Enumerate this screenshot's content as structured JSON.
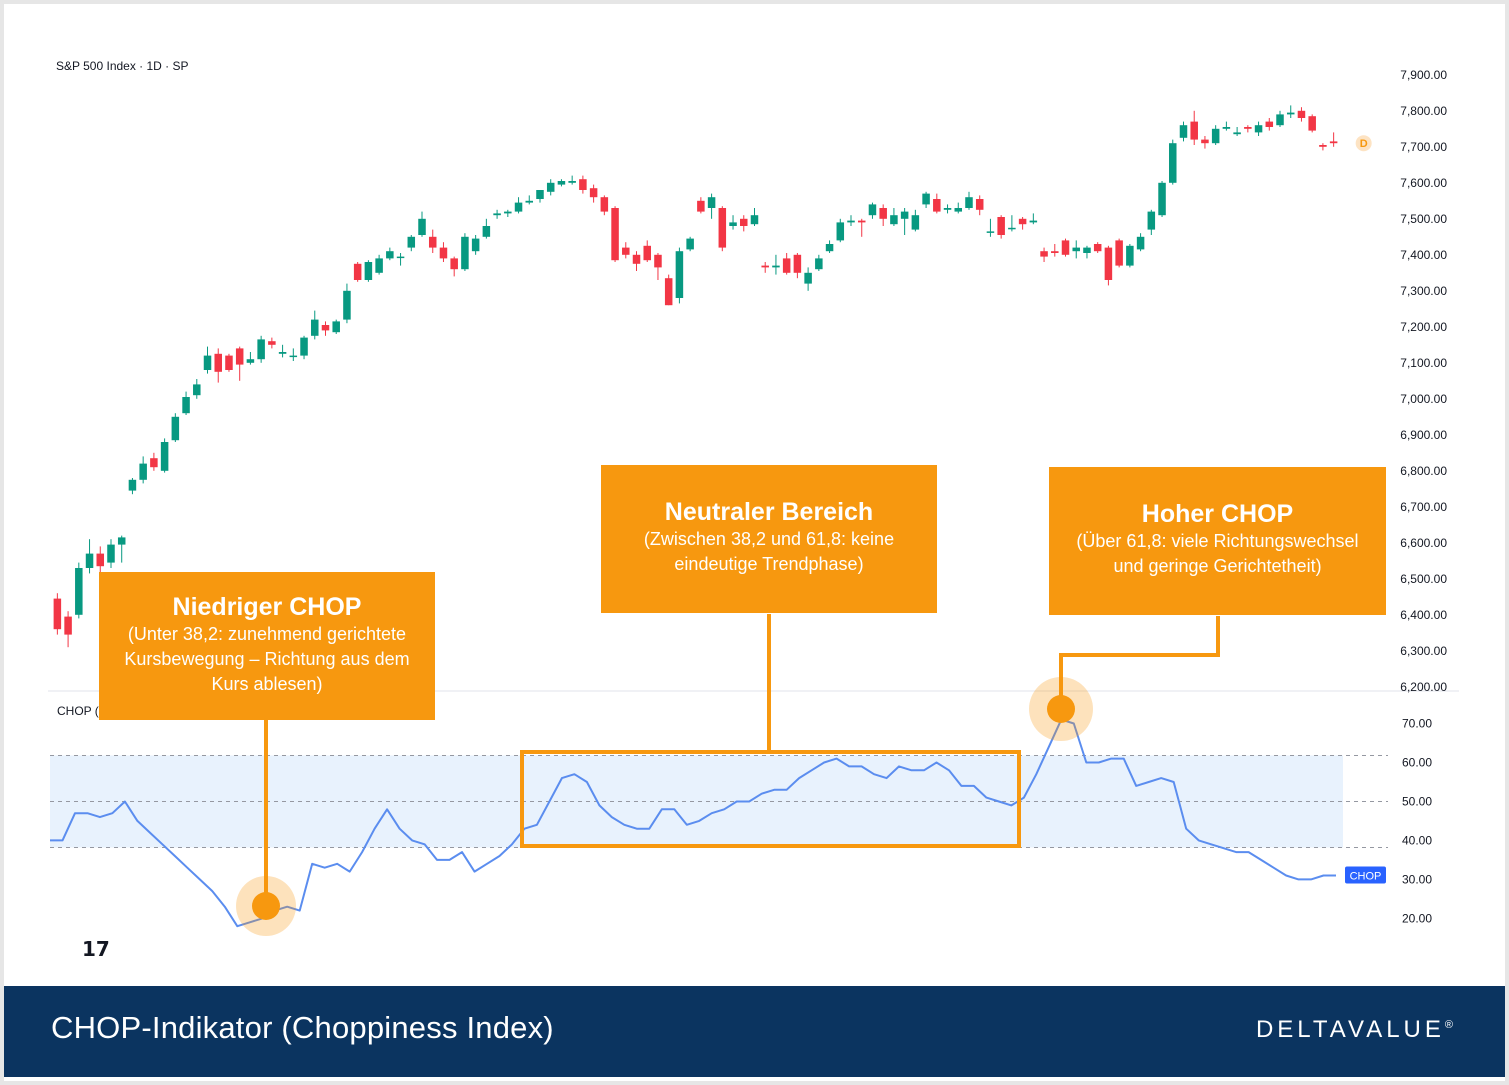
{
  "header": {
    "symbol": "S&P 500 Index · 1D · SP"
  },
  "indicator_label": "CHOP (",
  "callouts": {
    "low": {
      "title": "Niedriger CHOP",
      "text": "(Unter 38,2: zunehmend gerichtete Kursbewegung – Richtung aus dem Kurs ablesen)"
    },
    "neutral": {
      "title": "Neutraler Bereich",
      "text": "(Zwischen 38,2 und 61,8: keine eindeutige Trendphase)"
    },
    "high": {
      "title": "Hoher CHOP",
      "text": "(Über 61,8: viele Richtungswechsel und geringe Gerichtetheit)"
    }
  },
  "footer": {
    "title": "CHOP-Indikator (Choppiness Index)",
    "brand": "DELTAVALUE"
  },
  "colors": {
    "up": "#089981",
    "down": "#f23645",
    "chop_line": "#5b8def",
    "band_fill": "#e8f2fd",
    "callout": "#f7980f",
    "footer_bg": "#0b3460"
  },
  "chart_data": [
    {
      "type": "candlestick",
      "title": "S&P 500 Index · 1D · SP",
      "y_ticks": [
        "7,900.00",
        "7,800.00",
        "7,700.00",
        "7,600.00",
        "7,500.00",
        "7,400.00",
        "7,300.00",
        "7,200.00",
        "7,100.00",
        "7,000.00",
        "6,900.00",
        "6,800.00",
        "6,700.00",
        "6,600.00",
        "6,500.00",
        "6,400.00",
        "6,300.00",
        "6,200.00"
      ],
      "y_tick_values": [
        7900,
        7800,
        7700,
        7600,
        7500,
        7400,
        7300,
        7200,
        7100,
        7000,
        6900,
        6800,
        6700,
        6600,
        6500,
        6400,
        6300,
        6200
      ],
      "ylim": [
        6180,
        7930
      ],
      "last_price_marker": "D",
      "candles": [
        [
          6445,
          6360,
          6460,
          6345
        ],
        [
          6395,
          6345,
          6410,
          6310
        ],
        [
          6400,
          6530,
          6545,
          6390
        ],
        [
          6530,
          6570,
          6610,
          6515
        ],
        [
          6570,
          6535,
          6590,
          6500
        ],
        [
          6545,
          6595,
          6610,
          6530
        ],
        [
          6595,
          6615,
          6620,
          6545
        ],
        [
          6745,
          6775,
          6780,
          6735
        ],
        [
          6775,
          6820,
          6840,
          6765
        ],
        [
          6835,
          6810,
          6850,
          6800
        ],
        [
          6800,
          6880,
          6890,
          6795
        ],
        [
          6885,
          6950,
          6960,
          6880
        ],
        [
          6960,
          7005,
          7020,
          6955
        ],
        [
          7010,
          7040,
          7055,
          7000
        ],
        [
          7080,
          7120,
          7145,
          7070
        ],
        [
          7125,
          7075,
          7140,
          7045
        ],
        [
          7120,
          7080,
          7125,
          7075
        ],
        [
          7140,
          7095,
          7145,
          7050
        ],
        [
          7100,
          7110,
          7130,
          7095
        ],
        [
          7110,
          7165,
          7175,
          7100
        ],
        [
          7160,
          7150,
          7170,
          7140
        ],
        [
          7125,
          7130,
          7150,
          7115
        ],
        [
          7120,
          7120,
          7140,
          7105
        ],
        [
          7120,
          7170,
          7175,
          7110
        ],
        [
          7175,
          7220,
          7245,
          7165
        ],
        [
          7205,
          7190,
          7215,
          7175
        ],
        [
          7185,
          7215,
          7220,
          7180
        ],
        [
          7220,
          7300,
          7320,
          7210
        ],
        [
          7375,
          7330,
          7380,
          7325
        ],
        [
          7330,
          7380,
          7385,
          7325
        ],
        [
          7350,
          7390,
          7400,
          7345
        ],
        [
          7390,
          7410,
          7420,
          7385
        ],
        [
          7395,
          7395,
          7405,
          7370
        ],
        [
          7420,
          7450,
          7455,
          7410
        ],
        [
          7455,
          7500,
          7520,
          7450
        ],
        [
          7450,
          7420,
          7470,
          7405
        ],
        [
          7420,
          7390,
          7435,
          7380
        ],
        [
          7390,
          7360,
          7395,
          7340
        ],
        [
          7360,
          7450,
          7460,
          7355
        ],
        [
          7410,
          7445,
          7455,
          7400
        ],
        [
          7450,
          7480,
          7500,
          7445
        ],
        [
          7510,
          7515,
          7525,
          7500
        ],
        [
          7515,
          7520,
          7525,
          7505
        ],
        [
          7520,
          7545,
          7560,
          7515
        ],
        [
          7545,
          7550,
          7565,
          7540
        ],
        [
          7555,
          7580,
          7580,
          7545
        ],
        [
          7575,
          7600,
          7610,
          7565
        ],
        [
          7595,
          7605,
          7610,
          7590
        ],
        [
          7600,
          7605,
          7620,
          7595
        ],
        [
          7610,
          7580,
          7620,
          7570
        ],
        [
          7585,
          7560,
          7595,
          7545
        ],
        [
          7560,
          7520,
          7565,
          7510
        ],
        [
          7530,
          7385,
          7535,
          7380
        ],
        [
          7420,
          7400,
          7435,
          7390
        ],
        [
          7400,
          7375,
          7410,
          7355
        ],
        [
          7425,
          7385,
          7440,
          7380
        ],
        [
          7400,
          7365,
          7405,
          7330
        ],
        [
          7335,
          7260,
          7345,
          7260
        ],
        [
          7280,
          7410,
          7420,
          7265
        ],
        [
          7415,
          7445,
          7450,
          7410
        ],
        [
          7550,
          7520,
          7560,
          7515
        ],
        [
          7530,
          7560,
          7570,
          7500
        ],
        [
          7530,
          7420,
          7535,
          7410
        ],
        [
          7480,
          7490,
          7510,
          7470
        ],
        [
          7500,
          7480,
          7510,
          7465
        ],
        [
          7485,
          7510,
          7530,
          7480
        ],
        [
          7370,
          7365,
          7380,
          7350
        ],
        [
          7365,
          7370,
          7400,
          7345
        ],
        [
          7390,
          7350,
          7405,
          7345
        ],
        [
          7400,
          7350,
          7405,
          7335
        ],
        [
          7320,
          7350,
          7365,
          7300
        ],
        [
          7360,
          7390,
          7400,
          7355
        ],
        [
          7410,
          7430,
          7440,
          7405
        ],
        [
          7440,
          7490,
          7500,
          7435
        ],
        [
          7490,
          7495,
          7510,
          7480
        ],
        [
          7495,
          7490,
          7500,
          7450
        ],
        [
          7510,
          7540,
          7545,
          7500
        ],
        [
          7530,
          7500,
          7540,
          7480
        ],
        [
          7485,
          7510,
          7530,
          7480
        ],
        [
          7500,
          7520,
          7530,
          7455
        ],
        [
          7470,
          7510,
          7525,
          7465
        ],
        [
          7540,
          7570,
          7575,
          7530
        ],
        [
          7555,
          7520,
          7570,
          7515
        ],
        [
          7525,
          7530,
          7540,
          7515
        ],
        [
          7520,
          7530,
          7545,
          7515
        ],
        [
          7530,
          7560,
          7575,
          7525
        ],
        [
          7555,
          7525,
          7565,
          7510
        ],
        [
          7465,
          7465,
          7500,
          7450
        ],
        [
          7505,
          7455,
          7510,
          7445
        ],
        [
          7475,
          7475,
          7510,
          7465
        ],
        [
          7500,
          7485,
          7505,
          7470
        ],
        [
          7490,
          7495,
          7515,
          7485
        ],
        [
          7410,
          7395,
          7420,
          7380
        ],
        [
          7410,
          7405,
          7430,
          7395
        ],
        [
          7440,
          7400,
          7445,
          7395
        ],
        [
          7410,
          7420,
          7440,
          7390
        ],
        [
          7405,
          7420,
          7425,
          7390
        ],
        [
          7430,
          7410,
          7435,
          7405
        ],
        [
          7420,
          7330,
          7425,
          7315
        ],
        [
          7440,
          7370,
          7445,
          7365
        ],
        [
          7370,
          7425,
          7430,
          7365
        ],
        [
          7415,
          7450,
          7460,
          7410
        ],
        [
          7470,
          7520,
          7525,
          7455
        ],
        [
          7510,
          7600,
          7605,
          7505
        ],
        [
          7600,
          7710,
          7720,
          7595
        ],
        [
          7725,
          7760,
          7770,
          7715
        ],
        [
          7770,
          7720,
          7800,
          7705
        ],
        [
          7720,
          7710,
          7730,
          7695
        ],
        [
          7710,
          7750,
          7760,
          7705
        ],
        [
          7750,
          7755,
          7770,
          7745
        ],
        [
          7735,
          7740,
          7755,
          7730
        ],
        [
          7755,
          7750,
          7760,
          7740
        ],
        [
          7740,
          7760,
          7770,
          7730
        ],
        [
          7770,
          7755,
          7780,
          7745
        ],
        [
          7760,
          7790,
          7800,
          7755
        ],
        [
          7790,
          7795,
          7815,
          7780
        ],
        [
          7800,
          7780,
          7810,
          7770
        ],
        [
          7785,
          7745,
          7790,
          7740
        ],
        [
          7705,
          7700,
          7710,
          7690
        ],
        [
          7715,
          7710,
          7740,
          7700
        ]
      ]
    },
    {
      "type": "line",
      "title": "CHOP",
      "series": [
        {
          "name": "CHOP",
          "values": [
            40,
            40,
            47,
            47,
            46,
            47,
            50,
            45,
            42,
            39,
            36,
            33,
            30,
            27,
            23,
            18,
            19,
            20,
            22,
            23,
            22,
            34,
            33,
            34,
            32,
            37,
            43,
            48,
            43,
            40,
            39,
            35,
            35,
            37,
            32,
            34,
            36,
            39,
            43,
            44,
            50,
            56,
            57,
            55,
            49,
            46,
            44,
            43,
            43,
            48,
            48,
            44,
            45,
            47,
            48,
            50,
            50,
            52,
            53,
            53,
            56,
            58,
            60,
            61,
            59,
            59,
            57,
            56,
            59,
            58,
            58,
            60,
            58,
            54,
            54,
            51,
            50,
            49,
            51,
            57,
            64,
            71,
            70,
            60,
            60,
            61,
            61,
            54,
            55,
            56,
            55,
            43,
            40,
            39,
            38,
            37,
            37,
            35,
            33,
            31,
            30,
            30,
            31,
            31
          ]
        }
      ],
      "y_ticks": [
        "70.00",
        "60.00",
        "50.00",
        "40.00",
        "30.00",
        "20.00"
      ],
      "y_tick_values": [
        70,
        60,
        50,
        40,
        30,
        20
      ],
      "ylim": [
        16,
        75
      ],
      "reference_lines": [
        61.8,
        50,
        38.2
      ],
      "band": [
        38.2,
        61.8
      ],
      "last_value_label": "CHOP"
    }
  ]
}
